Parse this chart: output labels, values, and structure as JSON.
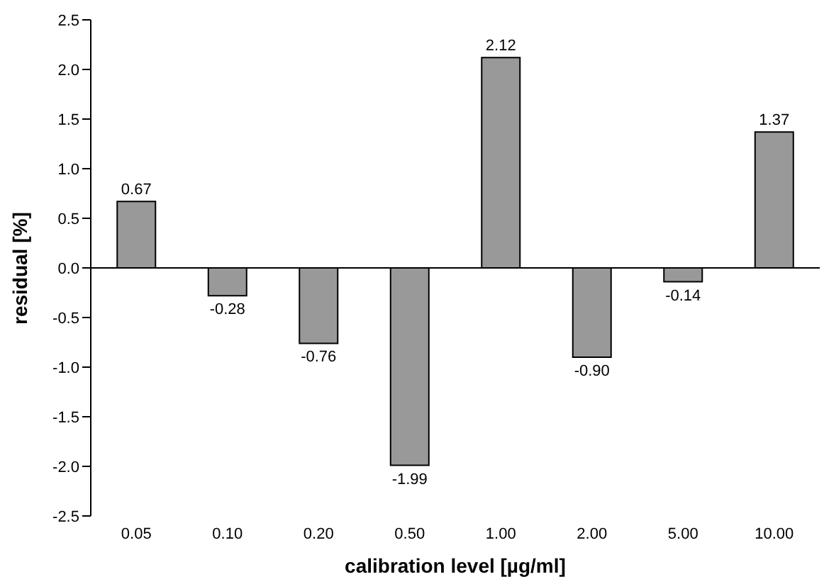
{
  "chart_data": {
    "type": "bar",
    "xlabel": "calibration level [µg/ml]",
    "ylabel": "residual [%]",
    "categories": [
      "0.05",
      "0.10",
      "0.20",
      "0.50",
      "1.00",
      "2.00",
      "5.00",
      "10.00"
    ],
    "values": [
      0.67,
      -0.28,
      -0.76,
      -1.99,
      2.12,
      -0.9,
      -0.14,
      1.37
    ],
    "value_labels": [
      "0.67",
      "-0.28",
      "-0.76",
      "-1.99",
      "2.12",
      "-0.90",
      "-0.14",
      "1.37"
    ],
    "color": "#999999",
    "ylim": [
      -2.5,
      2.5
    ],
    "yticks": [
      {
        "value": -2.5,
        "label": "-2.5"
      },
      {
        "value": -2,
        "label": "-2.0"
      },
      {
        "value": -1.5,
        "label": "-1.5"
      },
      {
        "value": -1,
        "label": "-1.0"
      },
      {
        "value": -0.5,
        "label": "-0.5"
      },
      {
        "value": 0,
        "label": "0.0"
      },
      {
        "value": 0.5,
        "label": "0.5"
      },
      {
        "value": 1,
        "label": "1.0"
      },
      {
        "value": 1.5,
        "label": "1.5"
      },
      {
        "value": 2,
        "label": "2.0"
      },
      {
        "value": 2.5,
        "label": "2.5"
      }
    ],
    "ref_lines": [
      {
        "axis": "y",
        "value": 0,
        "color": "#000000"
      }
    ],
    "grid": false,
    "legend": false
  }
}
